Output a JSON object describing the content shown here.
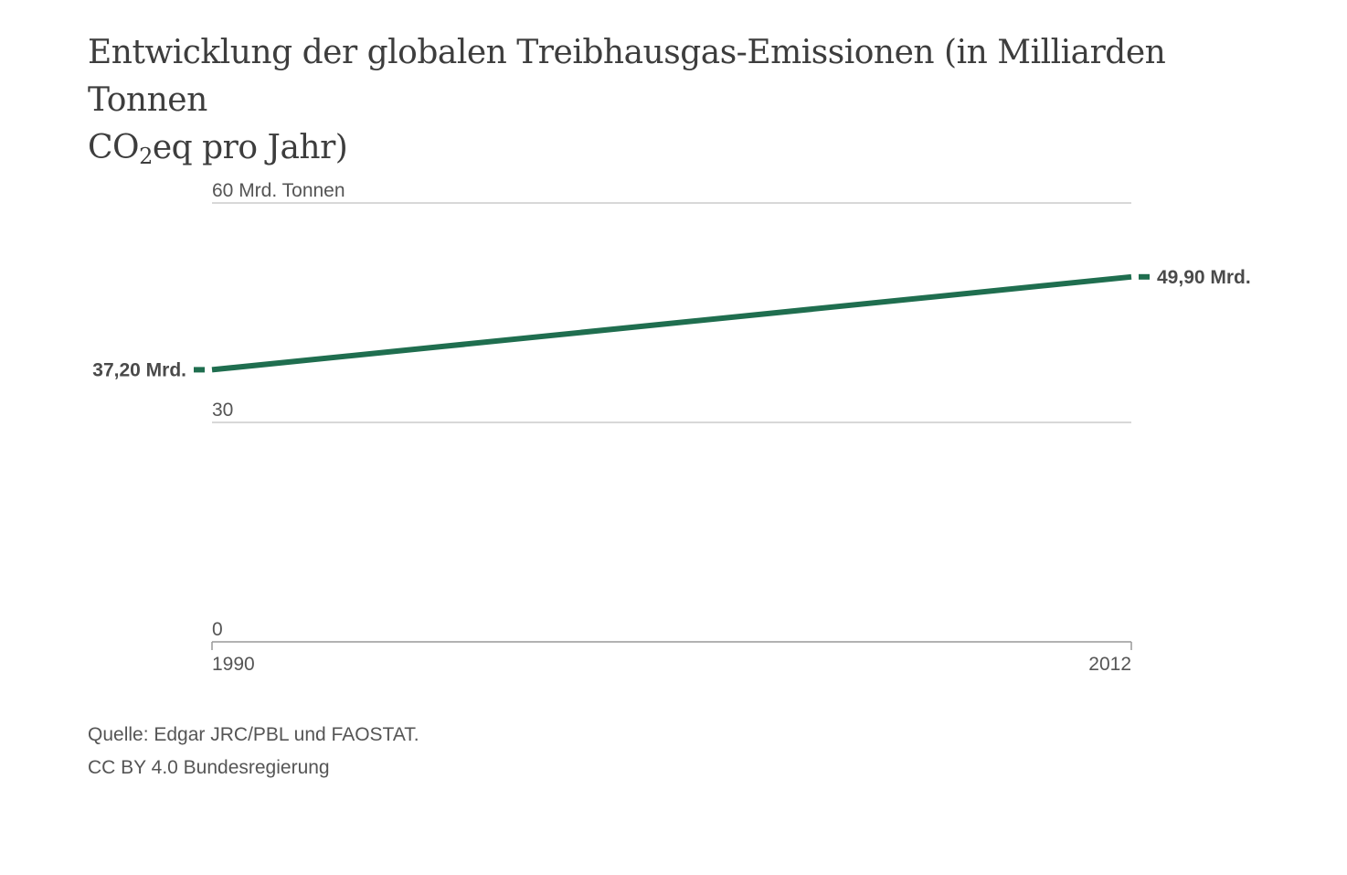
{
  "title": {
    "line1": "Entwicklung der globalen Treibhausgas-Emissionen (in Milliarden Tonnen",
    "line2_pre": "CO",
    "line2_sub": "2",
    "line2_post": "eq pro Jahr)"
  },
  "chart_data": {
    "type": "line",
    "title": "Entwicklung der globalen Treibhausgas-Emissionen (in Milliarden Tonnen CO2eq pro Jahr)",
    "x": [
      1990,
      2012
    ],
    "x_tick_labels": [
      "1990",
      "2012"
    ],
    "y_ticks": [
      0,
      30,
      60
    ],
    "y_tick_labels": [
      "0",
      "30",
      "60 Mrd. Tonnen"
    ],
    "ylim": [
      0,
      60
    ],
    "grid": true,
    "series": [
      {
        "values": [
          37.2,
          49.9
        ],
        "color": "#1f6e4f",
        "start_label": "37,20 Mrd.",
        "end_label": "49,90 Mrd."
      }
    ]
  },
  "source": {
    "line1": "Quelle: Edgar JRC/PBL und FAOSTAT.",
    "line2": "CC BY 4.0 Bundesregierung"
  },
  "colors": {
    "line": "#1f6e4f",
    "grid": "#cccccc",
    "axis": "#999999"
  }
}
